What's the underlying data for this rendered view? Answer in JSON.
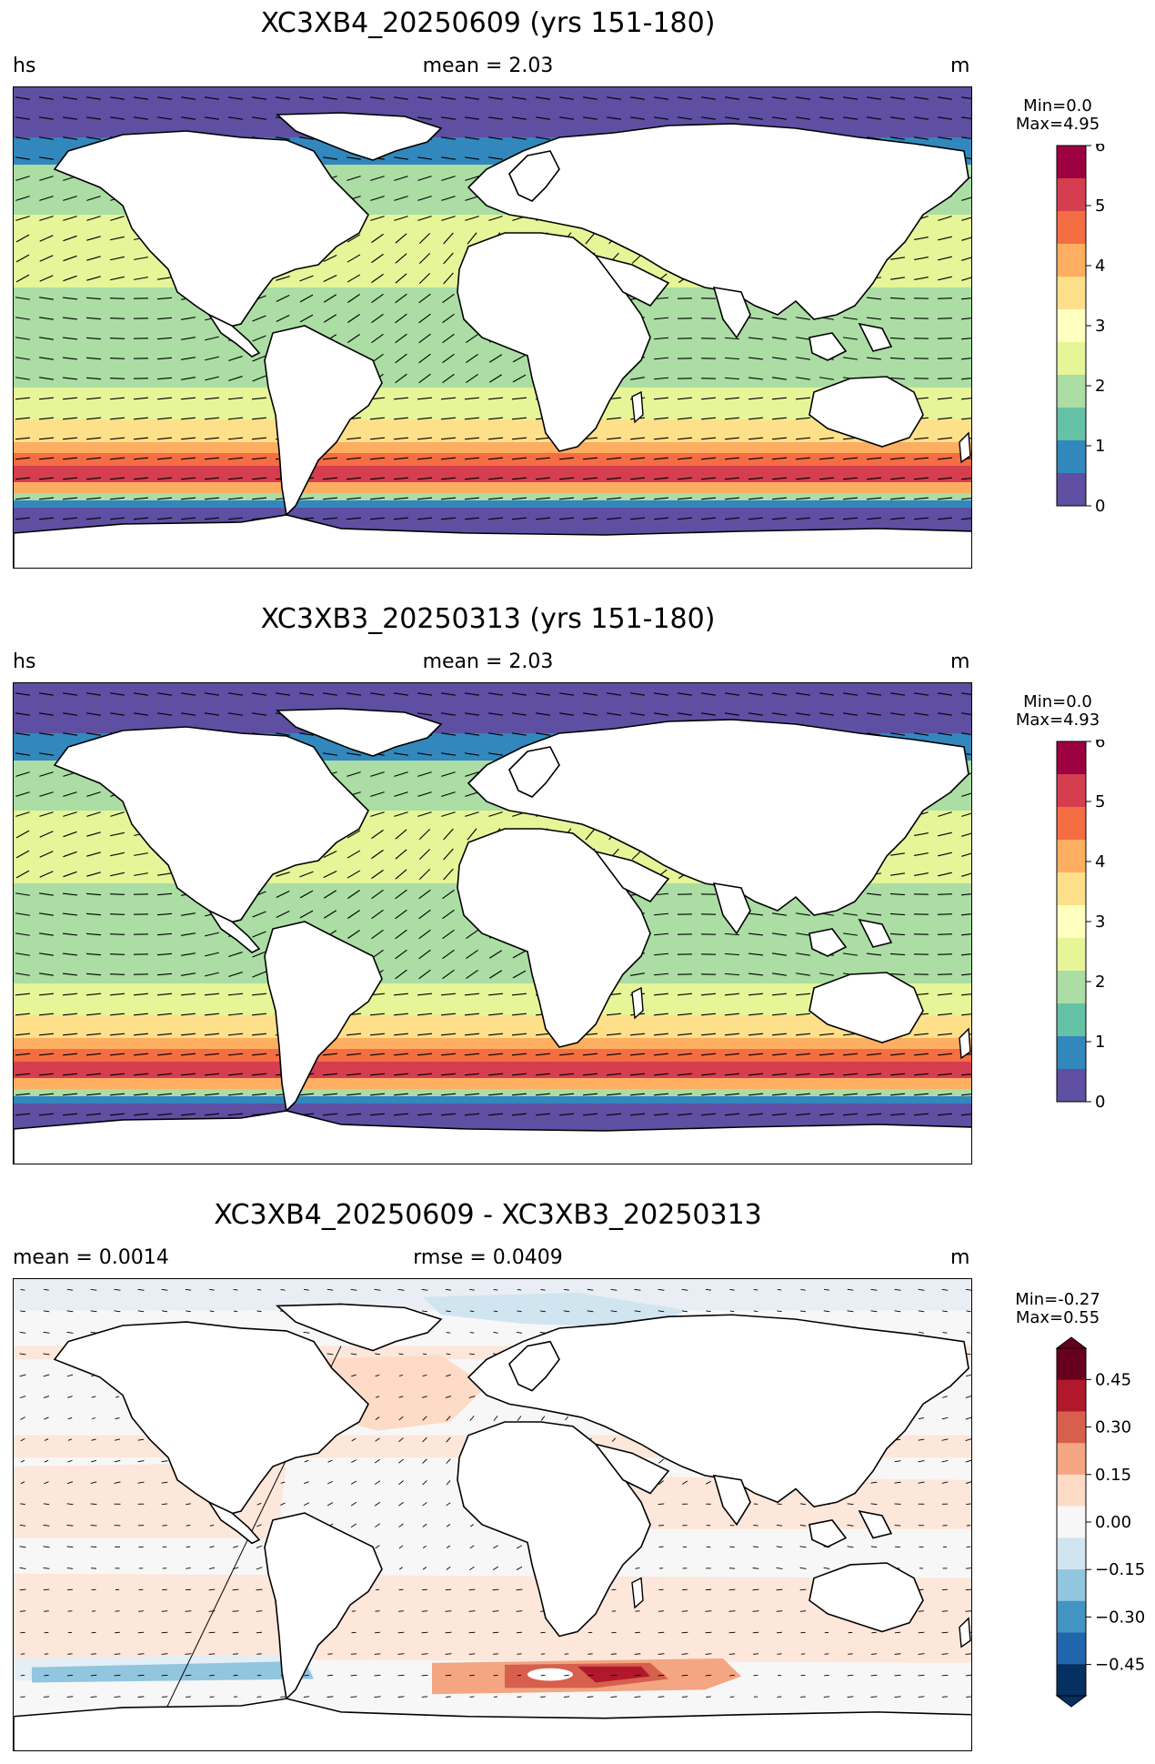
{
  "panels": [
    {
      "title": "XC3XB4_20250609 (yrs 151-180)",
      "left_label": "hs",
      "center_label": "mean = 2.03",
      "right_label": "m",
      "min_label": "Min=0.0",
      "max_label": "Max=4.95",
      "colorbar": {
        "type": "sequential",
        "ticks": [
          "6",
          "5",
          "4",
          "3",
          "2",
          "1",
          "0"
        ],
        "colors": [
          "#9e0142",
          "#d53e4f",
          "#f46d43",
          "#fdae61",
          "#fee08b",
          "#ffffbf",
          "#e6f598",
          "#abdda4",
          "#66c2a5",
          "#3288bd",
          "#5e4fa2"
        ]
      }
    },
    {
      "title": "XC3XB3_20250313 (yrs 151-180)",
      "left_label": "hs",
      "center_label": "mean = 2.03",
      "right_label": "m",
      "min_label": "Min=0.0",
      "max_label": "Max=4.93",
      "colorbar": {
        "type": "sequential",
        "ticks": [
          "6",
          "5",
          "4",
          "3",
          "2",
          "1",
          "0"
        ],
        "colors": [
          "#9e0142",
          "#d53e4f",
          "#f46d43",
          "#fdae61",
          "#fee08b",
          "#ffffbf",
          "#e6f598",
          "#abdda4",
          "#66c2a5",
          "#3288bd",
          "#5e4fa2"
        ]
      }
    },
    {
      "title": "XC3XB4_20250609 - XC3XB3_20250313",
      "left_label": "mean = 0.0014",
      "center_label": "rmse = 0.0409",
      "right_label": "m",
      "min_label": "Min=-0.27",
      "max_label": "Max=0.55",
      "colorbar": {
        "type": "diverging",
        "ticks": [
          "0.45",
          "0.30",
          "0.15",
          "0.00",
          "−0.15",
          "−0.30",
          "−0.45"
        ],
        "colors": [
          "#67001f",
          "#b2182b",
          "#d6604d",
          "#f4a582",
          "#fddbc7",
          "#f7f7f7",
          "#d1e5f0",
          "#92c5de",
          "#4393c3",
          "#2166ac",
          "#053061"
        ]
      }
    }
  ]
}
